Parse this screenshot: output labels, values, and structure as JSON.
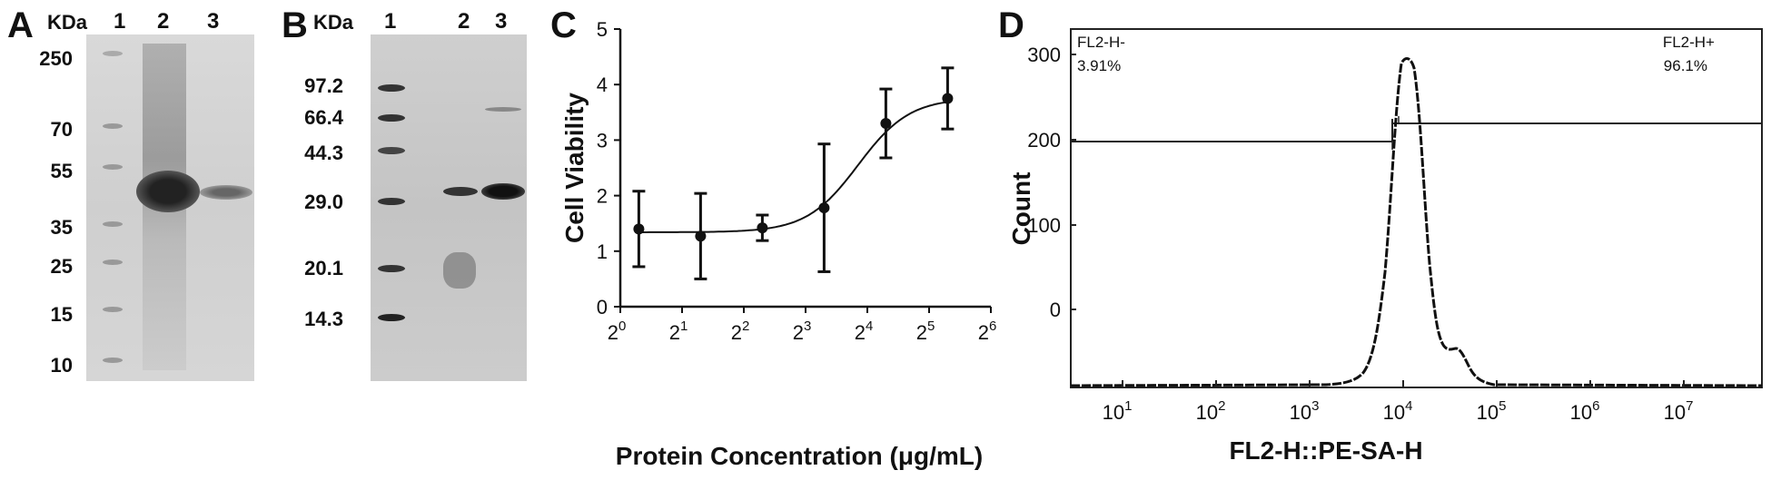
{
  "panelA": {
    "label": "A",
    "unit": "KDa",
    "lanes": [
      "1",
      "2",
      "3"
    ],
    "markers": [
      "250",
      "70",
      "55",
      "35",
      "25",
      "15",
      "10"
    ]
  },
  "panelB": {
    "label": "B",
    "unit": "KDa",
    "lanes": [
      "1",
      "2",
      "3"
    ],
    "markers": [
      "97.2",
      "66.4",
      "44.3",
      "29.0",
      "20.1",
      "14.3"
    ]
  },
  "panelD": {
    "label": "D",
    "xlabel": "FL2-H::PE-SA-H",
    "ylabel": "Count",
    "yticks": [
      "300",
      "200",
      "100",
      "0"
    ],
    "xticks": [
      {
        "base": "10",
        "exp": "1"
      },
      {
        "base": "10",
        "exp": "2"
      },
      {
        "base": "10",
        "exp": "3"
      },
      {
        "base": "10",
        "exp": "4"
      },
      {
        "base": "10",
        "exp": "5"
      },
      {
        "base": "10",
        "exp": "6"
      },
      {
        "base": "10",
        "exp": "7"
      }
    ],
    "gate_left": {
      "name": "FL2-H-",
      "pct": "3.91%"
    },
    "gate_right": {
      "name": "FL2-H+",
      "pct": "96.1%"
    }
  },
  "chart_data": {
    "type": "line",
    "label": "C",
    "title": "",
    "xlabel": "Protein Concentration (μg/mL)",
    "ylabel": "Cell Viability",
    "xscale": "log2",
    "xtick_exponents": [
      0,
      1,
      2,
      3,
      4,
      5,
      6
    ],
    "xtick_base": "2",
    "yticks": [
      "0",
      "1",
      "2",
      "3",
      "4",
      "5"
    ],
    "ylim": [
      0,
      5
    ],
    "xlim_log2": [
      0,
      6
    ],
    "series": [
      {
        "name": "Cell Viability",
        "x_log2": [
          0.3,
          1.3,
          2.3,
          3.3,
          4.3,
          5.3
        ],
        "y": [
          1.4,
          1.27,
          1.42,
          1.78,
          3.3,
          3.75
        ],
        "err": [
          0.68,
          0.77,
          0.23,
          1.15,
          0.62,
          0.55
        ]
      }
    ],
    "fit_curve": "sigmoid",
    "grid": false,
    "legend": "none"
  }
}
